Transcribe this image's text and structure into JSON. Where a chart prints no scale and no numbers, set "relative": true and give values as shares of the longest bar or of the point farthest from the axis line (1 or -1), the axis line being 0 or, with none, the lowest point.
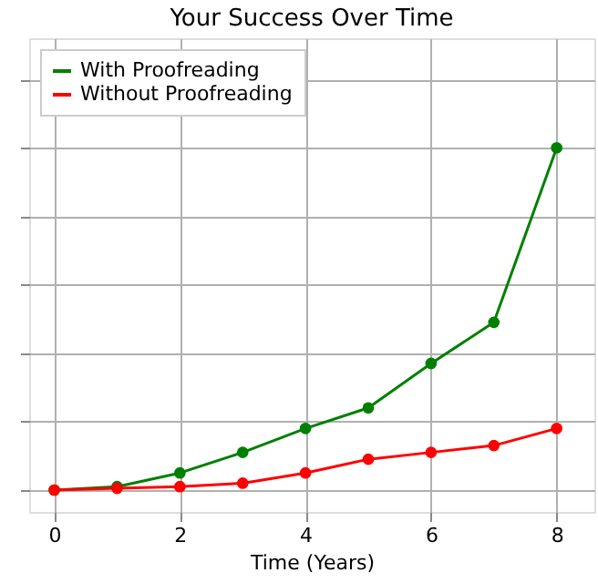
{
  "chart_data": {
    "type": "line",
    "title": "Your Success Over Time",
    "xlabel": "Time (Years)",
    "x": [
      0,
      1,
      2,
      3,
      4,
      5,
      6,
      7,
      8
    ],
    "xlim": [
      -0.4,
      8.6
    ],
    "xticks": [
      0,
      2,
      4,
      6,
      8
    ],
    "relative": true,
    "grid": true,
    "legend": "top left",
    "marker": "circle",
    "line_style": "solid",
    "series": [
      {
        "name": "With Proofreading",
        "color": "#008000",
        "values": [
          0,
          0.01,
          0.05,
          0.11,
          0.18,
          0.24,
          0.37,
          0.49,
          1
        ]
      },
      {
        "name": "Without Proofreading",
        "color": "#ff0000",
        "values": [
          0,
          0.005,
          0.01,
          0.02,
          0.05,
          0.09,
          0.11,
          0.13,
          0.18
        ]
      }
    ]
  }
}
